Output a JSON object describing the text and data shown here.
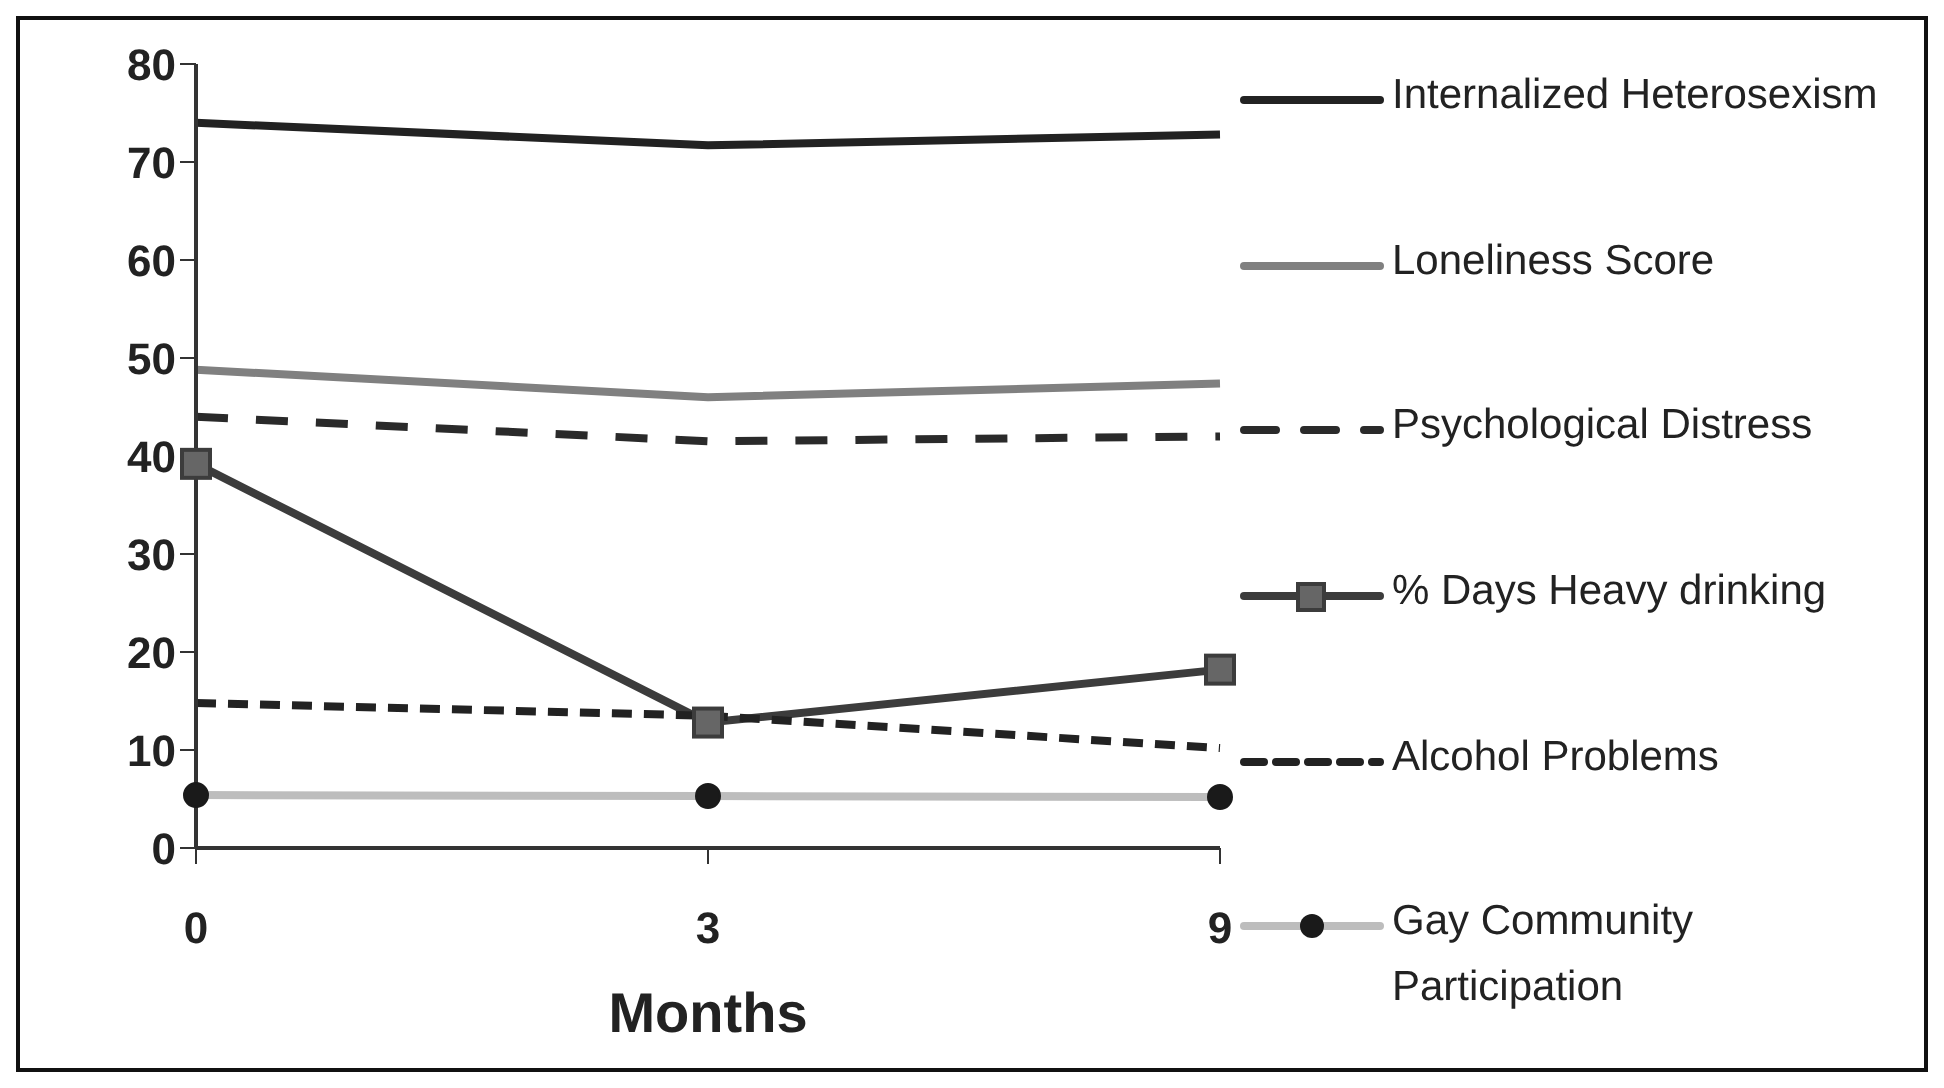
{
  "chart_data": {
    "type": "line",
    "xlabel": "Months",
    "categories": [
      "0",
      "3",
      "9"
    ],
    "series": [
      {
        "name": "Internalized Heterosexism",
        "color": "#222222",
        "values": [
          74,
          71.7,
          72.8
        ],
        "line_style": "solid",
        "marker": "none"
      },
      {
        "name": "Loneliness Score",
        "color": "#808080",
        "values": [
          48.8,
          46,
          47.4
        ],
        "line_style": "solid",
        "marker": "none"
      },
      {
        "name": "Psychological Distress",
        "color": "#2a2a2a",
        "values": [
          44,
          41.5,
          42
        ],
        "line_style": "dashed",
        "marker": "none"
      },
      {
        "name": "% Days Heavy drinking",
        "color": "#3c3c3c",
        "values": [
          39.2,
          12.8,
          18.2
        ],
        "line_style": "solid",
        "marker": "square"
      },
      {
        "name": "Alcohol Problems",
        "color": "#222222",
        "values": [
          14.8,
          13.5,
          10.2
        ],
        "line_style": "dotted",
        "marker": "none"
      },
      {
        "name": "Gay Community Participation",
        "color": "#bdbdbd",
        "values": [
          5.4,
          5.3,
          5.2
        ],
        "line_style": "solid",
        "marker": "circle"
      }
    ],
    "ylim": [
      0,
      80
    ],
    "yticks": [
      0,
      10,
      20,
      30,
      40,
      50,
      60,
      70,
      80
    ],
    "grid": false,
    "legend": "right"
  }
}
